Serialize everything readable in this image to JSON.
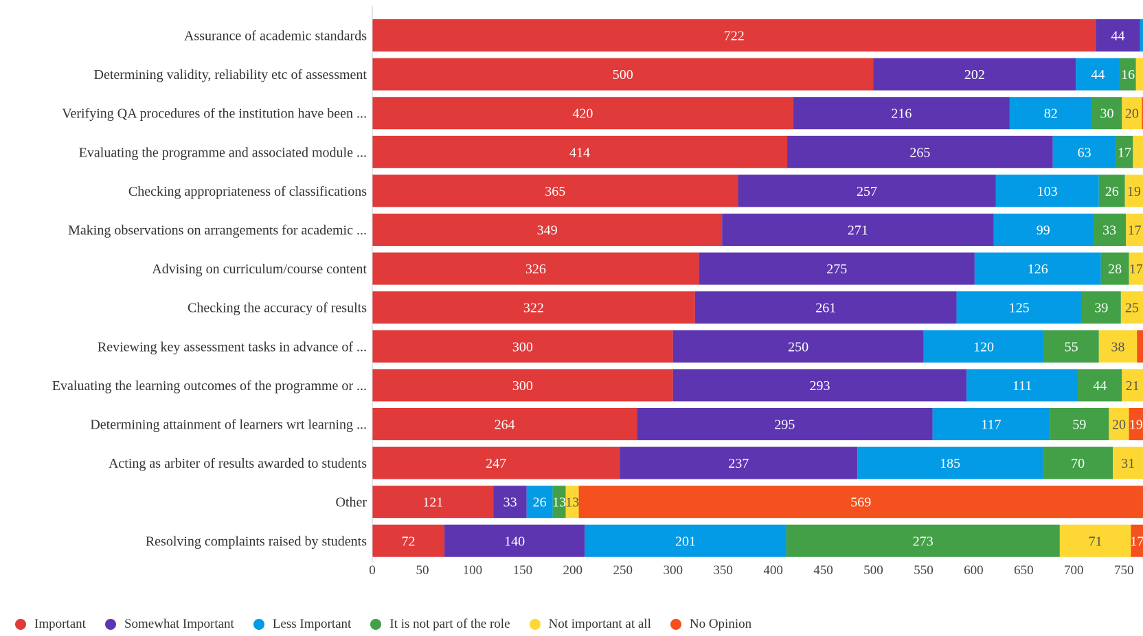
{
  "chart_data": {
    "type": "bar",
    "orientation": "horizontal",
    "stacked": true,
    "categories": [
      "Assurance of academic standards",
      "Determining validity, reliability etc of assessment",
      "Verifying QA procedures of the institution have been ...",
      "Evaluating the programme and associated module ...",
      "Checking appropriateness of classifications",
      "Making observations on arrangements for academic ...",
      "Advising on curriculum/course content",
      "Checking the accuracy of results",
      "Reviewing key assessment tasks in advance of ...",
      "Evaluating the learning outcomes of the programme or ...",
      "Determining attainment of learners wrt learning ...",
      "Acting as arbiter of results awarded to students",
      "Other",
      "Resolving complaints raised by students"
    ],
    "series": [
      {
        "name": "Important",
        "color": "#e03a3a",
        "values": [
          722,
          500,
          420,
          414,
          365,
          349,
          326,
          322,
          300,
          300,
          264,
          247,
          121,
          72
        ]
      },
      {
        "name": "Somewhat Important",
        "color": "#5e35b1",
        "values": [
          44,
          202,
          216,
          265,
          257,
          271,
          275,
          261,
          250,
          293,
          295,
          237,
          33,
          140
        ]
      },
      {
        "name": "Less Important",
        "color": "#039be5",
        "values": [
          3,
          44,
          82,
          63,
          103,
          99,
          126,
          125,
          120,
          111,
          117,
          185,
          26,
          201
        ]
      },
      {
        "name": "It is not part of the role",
        "color": "#43a047",
        "values": [
          2,
          16,
          30,
          17,
          26,
          33,
          28,
          39,
          55,
          44,
          59,
          70,
          13,
          273
        ]
      },
      {
        "name": "Not important at all",
        "color": "#fdd835",
        "values": [
          2,
          8,
          20,
          10,
          19,
          17,
          17,
          25,
          38,
          21,
          20,
          31,
          13,
          71
        ]
      },
      {
        "name": "No Opinion",
        "color": "#f4511e",
        "values": [
          2,
          5,
          5,
          5,
          5,
          5,
          5,
          5,
          10,
          5,
          19,
          5,
          569,
          17
        ]
      }
    ],
    "x_ticks": [
      0,
      50,
      100,
      150,
      200,
      250,
      300,
      350,
      400,
      450,
      500,
      550,
      600,
      650,
      700,
      750
    ],
    "xlim": [
      0,
      770
    ],
    "legend_position": "bottom-left",
    "grid": false
  }
}
